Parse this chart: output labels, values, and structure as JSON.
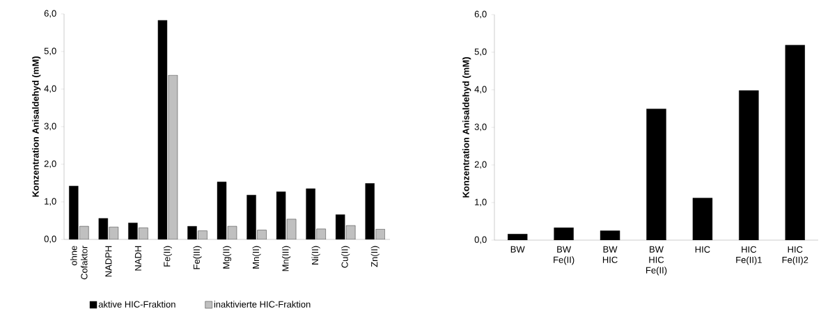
{
  "chart_data": [
    {
      "type": "bar",
      "ylabel": "Konzentration Anisaldehyd (mM)",
      "categories": [
        "ohne Cofaktor",
        "NADPH",
        "NADH",
        "Fe(II)",
        "Fe(III)",
        "Mg(II)",
        "Mn(II)",
        "Mn(III)",
        "Ni(II)",
        "Cu(II)",
        "Zn(II)"
      ],
      "series": [
        {
          "name": "aktive HIC-Fraktion",
          "color": "#000000",
          "values": [
            1.42,
            0.56,
            0.44,
            5.83,
            0.35,
            1.53,
            1.18,
            1.27,
            1.35,
            0.66,
            1.49
          ]
        },
        {
          "name": "inaktivierte HIC-Fraktion",
          "color": "#c0c0c0",
          "values": [
            0.35,
            0.33,
            0.31,
            4.37,
            0.23,
            0.35,
            0.25,
            0.54,
            0.28,
            0.37,
            0.27
          ]
        }
      ],
      "ylim": [
        0,
        6
      ],
      "yticks": [
        {
          "value": 0,
          "label": "0,0"
        },
        {
          "value": 1,
          "label": "1,0"
        },
        {
          "value": 2,
          "label": "2,0"
        },
        {
          "value": 3,
          "label": "3,0"
        },
        {
          "value": 4,
          "label": "4,0"
        },
        {
          "value": 5,
          "label": "5,0"
        },
        {
          "value": 6,
          "label": "6,0"
        }
      ],
      "legend": "bottom"
    },
    {
      "type": "bar",
      "ylabel": "Konzentration Anisaldehyd (mM)",
      "categories": [
        "BW",
        "BW Fe(II)",
        "BW HIC",
        "BW HIC Fe(II)",
        "HIC",
        "HIC Fe(II)1",
        "HIC Fe(II)2"
      ],
      "values": [
        0.16,
        0.33,
        0.25,
        3.49,
        1.12,
        3.98,
        5.19
      ],
      "color": "#000000",
      "ylim": [
        0,
        6
      ],
      "yticks": [
        {
          "value": 0,
          "label": "0,0"
        },
        {
          "value": 1,
          "label": "1,0"
        },
        {
          "value": 2,
          "label": "2,0"
        },
        {
          "value": 3,
          "label": "3,0"
        },
        {
          "value": 4,
          "label": "4,0"
        },
        {
          "value": 5,
          "label": "5,0"
        },
        {
          "value": 6,
          "label": "6,0"
        }
      ]
    }
  ]
}
